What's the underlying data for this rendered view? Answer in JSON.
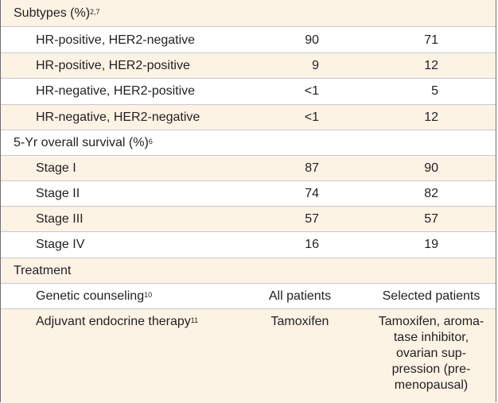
{
  "subtypes": {
    "header": "Subtypes (%)",
    "header_refs": "2,7",
    "rows": [
      {
        "label": "HR-positive, HER2-negative",
        "col2": "90",
        "col3": "71"
      },
      {
        "label": "HR-positive, HER2-positive",
        "col2": "9",
        "col3": "12"
      },
      {
        "label": "HR-negative, HER2-positive",
        "col2": "<1",
        "col3": "5"
      },
      {
        "label": "HR-negative, HER2-negative",
        "col2": "<1",
        "col3": "12"
      }
    ]
  },
  "survival": {
    "header": "5-Yr overall survival (%)",
    "header_refs": "6",
    "rows": [
      {
        "label": "Stage I",
        "col2": "87",
        "col3": "90"
      },
      {
        "label": "Stage II",
        "col2": "74",
        "col3": "82"
      },
      {
        "label": "Stage III",
        "col2": "57",
        "col3": "57"
      },
      {
        "label": "Stage IV",
        "col2": "16",
        "col3": "19"
      }
    ]
  },
  "treatment": {
    "header": "Treatment",
    "rows": [
      {
        "label": "Genetic counseling",
        "refs": "10",
        "col2": "All patients",
        "col3": "Selected patients"
      },
      {
        "label": "Adjuvant endocrine therapy",
        "refs": "11",
        "col2": "Tamoxifen",
        "col3_lines": [
          "Tamoxifen, aroma-",
          "tase inhibitor,",
          "ovarian sup-",
          "pression (pre-",
          "menopausal)"
        ]
      }
    ]
  }
}
